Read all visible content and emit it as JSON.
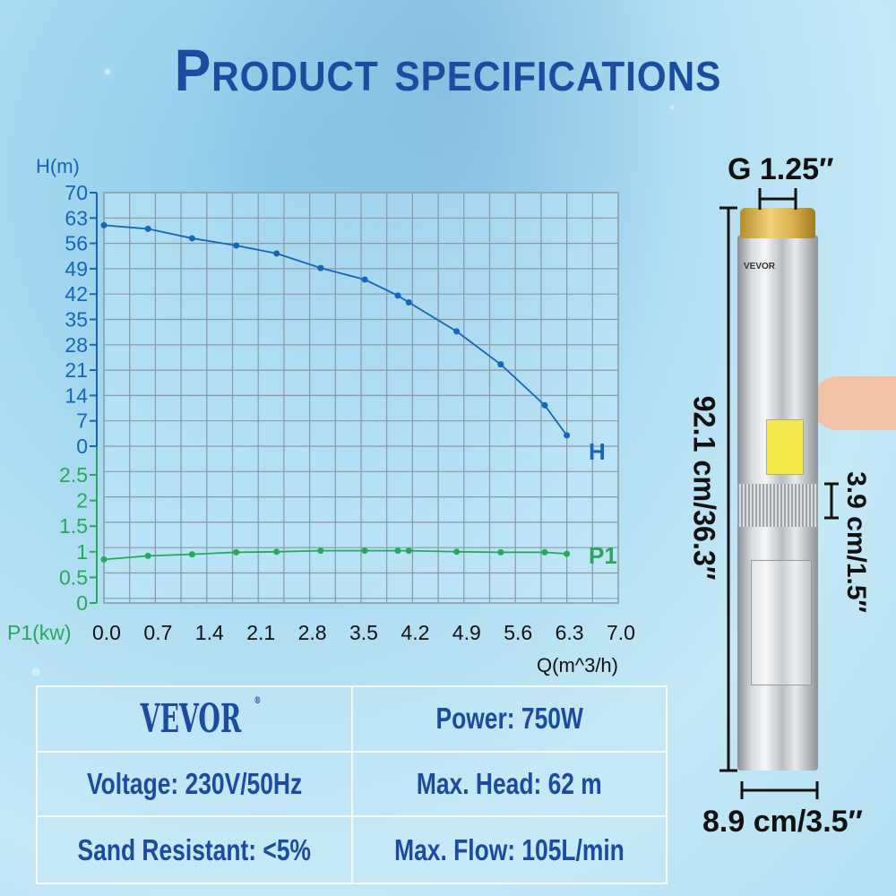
{
  "title": "Product specifications",
  "chart_data": {
    "type": "line",
    "xlabel": "Q(m^3/h)",
    "x_ticks": [
      "0.0",
      "0.7",
      "1.4",
      "2.1",
      "2.8",
      "3.5",
      "4.2",
      "4.9",
      "5.6",
      "6.3",
      "7.0"
    ],
    "xlim": [
      0,
      7.0
    ],
    "grid": true,
    "axes": [
      {
        "label": "H(m)",
        "ylim": [
          0,
          70
        ],
        "ticks": [
          "70",
          "63",
          "56",
          "49",
          "42",
          "35",
          "28",
          "21",
          "14",
          "7",
          "0"
        ],
        "color": "#1565b8"
      },
      {
        "label": "P1(kw)",
        "ylim": [
          0,
          2.5
        ],
        "ticks": [
          "2.5",
          "2",
          "1.5",
          "1",
          "0.5",
          "0"
        ],
        "color": "#27a85a"
      }
    ],
    "series": [
      {
        "name": "H",
        "axis": 0,
        "color": "#1565b8",
        "x": [
          0,
          0.6,
          1.2,
          1.8,
          2.35,
          2.95,
          3.55,
          4.0,
          4.15,
          4.8,
          5.4,
          6.0,
          6.3
        ],
        "y": [
          61,
          60,
          57.4,
          55.4,
          53.2,
          49.2,
          46,
          41.6,
          39.7,
          31.7,
          22.6,
          11.3,
          3
        ]
      },
      {
        "name": "P1",
        "axis": 1,
        "color": "#27a85a",
        "x": [
          0,
          0.6,
          1.2,
          1.8,
          2.35,
          2.95,
          3.55,
          4.0,
          4.15,
          4.8,
          5.4,
          6.0,
          6.3
        ],
        "y": [
          0.85,
          0.92,
          0.95,
          0.99,
          1.0,
          1.02,
          1.02,
          1.02,
          1.02,
          1.0,
          0.99,
          0.99,
          0.96
        ]
      }
    ]
  },
  "specs": {
    "brand": "VEVOR",
    "registered": "®",
    "power": "Power: 750W",
    "voltage": "Voltage: 230V/50Hz",
    "head": "Max. Head: 62 m",
    "sand": "Sand Resistant: <5%",
    "flow": "Max. Flow: 105L/min"
  },
  "product": {
    "outlet": "G 1.25″",
    "length": "92.1 cm/36.3″",
    "inlet_height": "3.9 cm/1.5″",
    "diameter": "8.9 cm/3.5″",
    "label_brand": "VEVOR"
  }
}
